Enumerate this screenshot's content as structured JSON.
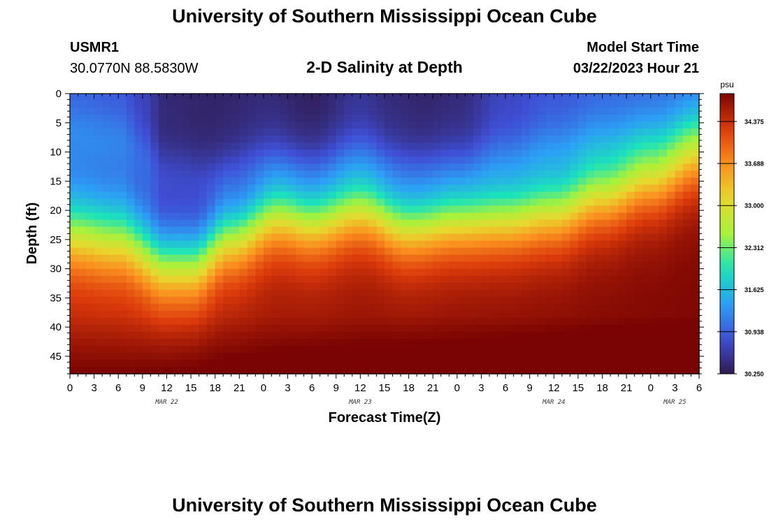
{
  "page": {
    "title": "University of Southern Mississippi Ocean Cube",
    "footer_title": "University of Southern Mississippi Ocean Cube"
  },
  "station": {
    "id": "USMR1",
    "coords": "30.0770N  88.5830W"
  },
  "model": {
    "label": "Model Start Time",
    "start": "03/22/2023 Hour 21"
  },
  "colors": {
    "colormap": [
      "#301a4f",
      "#3f4fd6",
      "#2c9ff5",
      "#1be3ba",
      "#a6f23b",
      "#e8d82e",
      "#fb8f1f",
      "#dc3a0b",
      "#7a0403"
    ]
  },
  "chart_data": {
    "type": "heatmap",
    "title": "2-D Salinity at Depth",
    "xlabel": "Forecast Time(Z)",
    "ylabel": "Depth (ft)",
    "x_hour_range": [
      0,
      78
    ],
    "x_ticks": [
      "0",
      "3",
      "6",
      "9",
      "12",
      "15",
      "18",
      "21",
      "0",
      "3",
      "6",
      "9",
      "12",
      "15",
      "18",
      "21",
      "0",
      "3",
      "6",
      "9",
      "12",
      "15",
      "18",
      "21",
      "0",
      "3",
      "6"
    ],
    "date_labels": [
      {
        "label": "MAR 22",
        "at_hour": 12
      },
      {
        "label": "MAR 23",
        "at_hour": 36
      },
      {
        "label": "MAR 24",
        "at_hour": 60
      },
      {
        "label": "MAR 25",
        "at_hour": 75
      }
    ],
    "y_range": [
      0,
      48
    ],
    "y_ticks": [
      0,
      5,
      10,
      15,
      20,
      25,
      30,
      35,
      40,
      45
    ],
    "colorbar": {
      "unit": "psu",
      "min": 30.25,
      "max": 34.83,
      "tick_labels": [
        "30.250",
        "30.938",
        "31.625",
        "32.312",
        "33.000",
        "33.688",
        "34.375"
      ]
    },
    "halocline_depth_ft": {
      "hours": [
        0,
        6,
        12,
        15,
        20,
        26,
        30,
        36,
        42,
        48,
        54,
        60,
        66,
        72,
        78
      ],
      "depths": [
        24,
        25,
        29,
        29,
        24,
        20,
        21,
        19,
        22,
        21,
        21,
        20,
        17,
        14,
        10
      ]
    },
    "fresh_layer_depth_ft": {
      "hours": [
        0,
        6,
        12,
        18,
        24,
        30,
        36,
        42,
        48,
        54,
        60,
        66,
        72,
        78
      ],
      "depths": [
        1,
        2,
        8,
        9,
        7,
        8,
        6,
        8,
        8,
        6,
        4,
        3,
        3,
        2
      ]
    },
    "surface_salinity_psu": {
      "hours": [
        0,
        6,
        9,
        12,
        18,
        24,
        30,
        36,
        40,
        44,
        48,
        54,
        60,
        66,
        72,
        78
      ],
      "values": [
        30.95,
        30.9,
        30.7,
        30.4,
        30.35,
        30.4,
        30.3,
        30.5,
        30.4,
        30.35,
        30.4,
        30.7,
        30.85,
        30.95,
        30.95,
        30.95
      ]
    }
  }
}
